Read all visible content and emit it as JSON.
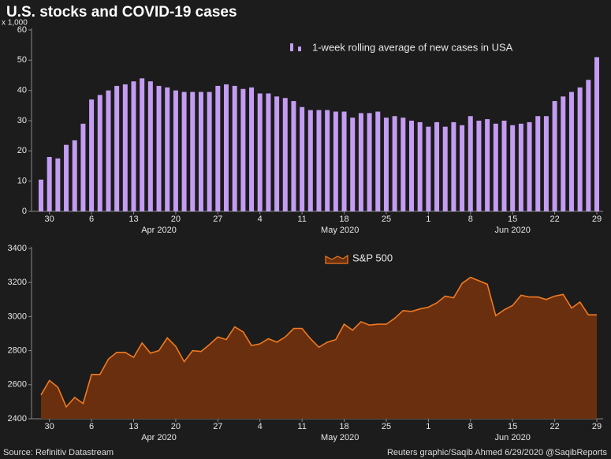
{
  "page": {
    "title": "U.S. stocks and COVID-19 cases",
    "source": "Source: Refinitiv Datastream",
    "credit": "Reuters graphic/Saqib Ahmed 6/29/2020 @SaqibReports"
  },
  "chart_data": [
    {
      "type": "bar",
      "legend": "1-week rolling average of new cases in USA",
      "y_unit": "x 1,000",
      "color": "#c49cf2",
      "categories": [
        null,
        "30",
        null,
        null,
        null,
        null,
        "6",
        null,
        null,
        null,
        null,
        "13",
        null,
        null,
        null,
        null,
        "20",
        null,
        null,
        null,
        null,
        "27",
        null,
        null,
        null,
        null,
        "4",
        null,
        null,
        null,
        null,
        "11",
        null,
        null,
        null,
        null,
        "18",
        null,
        null,
        null,
        null,
        "25",
        null,
        null,
        null,
        null,
        "1",
        null,
        null,
        null,
        null,
        "8",
        null,
        null,
        null,
        null,
        "15",
        null,
        null,
        null,
        null,
        "22",
        null,
        null,
        null,
        null,
        "29"
      ],
      "x_groups": [
        "Apr 2020",
        "May 2020",
        "Jun 2020"
      ],
      "values": [
        10.5,
        18,
        17.5,
        22,
        23.5,
        29,
        37,
        38.5,
        40,
        41.5,
        42,
        43,
        44,
        43,
        41.5,
        41,
        40,
        39.5,
        39.5,
        39.5,
        39.5,
        41.5,
        42,
        41.5,
        40.5,
        41,
        39,
        39,
        38,
        37.5,
        36.5,
        34.5,
        33.5,
        33.5,
        33.5,
        33,
        33,
        31,
        32.5,
        32.5,
        33,
        31,
        31.5,
        31,
        30,
        29.5,
        28,
        29.5,
        28,
        29.5,
        28.5,
        31.5,
        30,
        30.5,
        29,
        30,
        28.5,
        29,
        29.5,
        31.5,
        31.5,
        36.5,
        38,
        39.5,
        41,
        43.5,
        51
      ],
      "ylim": [
        0,
        60
      ],
      "yticks": [
        0,
        10,
        20,
        30,
        40,
        50,
        60
      ]
    },
    {
      "type": "area",
      "legend": "S&P 500",
      "color": "#f07a22",
      "fill": "#6a2f0e",
      "categories": [
        null,
        "30",
        null,
        null,
        null,
        null,
        "6",
        null,
        null,
        null,
        null,
        "13",
        null,
        null,
        null,
        null,
        "20",
        null,
        null,
        null,
        null,
        "27",
        null,
        null,
        null,
        null,
        "4",
        null,
        null,
        null,
        null,
        "11",
        null,
        null,
        null,
        null,
        "18",
        null,
        null,
        null,
        null,
        "25",
        null,
        null,
        null,
        null,
        "1",
        null,
        null,
        null,
        null,
        "8",
        null,
        null,
        null,
        null,
        "15",
        null,
        null,
        null,
        null,
        "22",
        null,
        null,
        null,
        null,
        "29"
      ],
      "x_groups": [
        "Apr 2020",
        "May 2020",
        "Jun 2020"
      ],
      "values": [
        2540,
        2625,
        2585,
        2470,
        2525,
        2490,
        2660,
        2660,
        2750,
        2790,
        2790,
        2760,
        2845,
        2785,
        2800,
        2875,
        2825,
        2735,
        2800,
        2795,
        2835,
        2880,
        2865,
        2940,
        2910,
        2830,
        2840,
        2870,
        2850,
        2880,
        2930,
        2930,
        2870,
        2820,
        2850,
        2865,
        2955,
        2920,
        2970,
        2950,
        2955,
        2955,
        2990,
        3035,
        3030,
        3045,
        3055,
        3080,
        3120,
        3110,
        3195,
        3230,
        3210,
        3190,
        3005,
        3040,
        3065,
        3125,
        3115,
        3115,
        3100,
        3120,
        3130,
        3050,
        3085,
        3010,
        3010
      ],
      "ylim": [
        2400,
        3400
      ],
      "yticks": [
        2400,
        2600,
        2800,
        3000,
        3200,
        3400
      ]
    }
  ]
}
